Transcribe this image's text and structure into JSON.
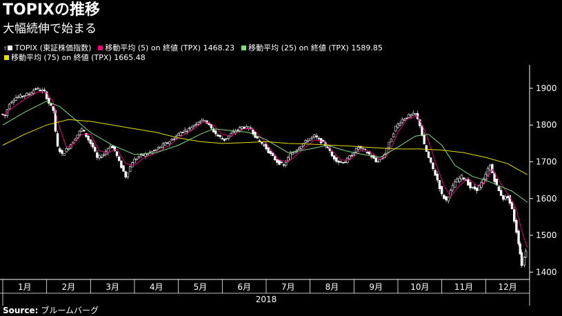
{
  "title": "TOPIXの推移",
  "subtitle": "大幅続伸で始まる",
  "source_label": "Source:",
  "source_value": "ブルームバーグ",
  "legend": {
    "row1": [
      {
        "label": "TOPIX (東証株価指数)",
        "color": "#ffffff",
        "icon": "candlestick-icon"
      },
      {
        "label": "移動平均 (5)  on 終値 (TPX) 1468.23",
        "color": "#e6007e"
      },
      {
        "label": "移動平均 (25)  on 終値 (TPX) 1589.85",
        "color": "#7ee07e"
      }
    ],
    "row2": [
      {
        "label": "移動平均 (75)  on 終値 (TPX) 1665.48",
        "color": "#e8e000"
      }
    ]
  },
  "chart_data": {
    "type": "line",
    "x_unit": "month-of-2018",
    "year_label": "2018",
    "months": [
      "1月",
      "2月",
      "3月",
      "4月",
      "5月",
      "6月",
      "7月",
      "8月",
      "9月",
      "10月",
      "11月",
      "12月"
    ],
    "ylim": [
      1380,
      1960
    ],
    "yticks": [
      1400,
      1500,
      1600,
      1700,
      1800,
      1900
    ],
    "tick_labels": [
      "1400",
      "1500",
      "1600",
      "1700",
      "1800",
      "1900"
    ],
    "grid": false,
    "y_axis_side": "right",
    "series": [
      {
        "role": "price",
        "color": "#ffffff",
        "points": [
          [
            0.0,
            1830
          ],
          [
            0.1,
            1825
          ],
          [
            0.2,
            1860
          ],
          [
            0.35,
            1875
          ],
          [
            0.5,
            1880
          ],
          [
            0.65,
            1885
          ],
          [
            0.8,
            1900
          ],
          [
            1.0,
            1890
          ],
          [
            1.1,
            1860
          ],
          [
            1.2,
            1840
          ],
          [
            1.25,
            1780
          ],
          [
            1.3,
            1740
          ],
          [
            1.4,
            1720
          ],
          [
            1.55,
            1740
          ],
          [
            1.7,
            1765
          ],
          [
            1.85,
            1790
          ],
          [
            1.95,
            1770
          ],
          [
            2.1,
            1740
          ],
          [
            2.2,
            1710
          ],
          [
            2.35,
            1720
          ],
          [
            2.5,
            1745
          ],
          [
            2.6,
            1730
          ],
          [
            2.7,
            1700
          ],
          [
            2.85,
            1660
          ],
          [
            3.0,
            1700
          ],
          [
            3.15,
            1715
          ],
          [
            3.3,
            1720
          ],
          [
            3.5,
            1730
          ],
          [
            3.7,
            1745
          ],
          [
            3.9,
            1760
          ],
          [
            4.0,
            1770
          ],
          [
            4.1,
            1780
          ],
          [
            4.3,
            1790
          ],
          [
            4.5,
            1810
          ],
          [
            4.65,
            1815
          ],
          [
            4.8,
            1790
          ],
          [
            4.95,
            1770
          ],
          [
            5.1,
            1760
          ],
          [
            5.3,
            1780
          ],
          [
            5.5,
            1795
          ],
          [
            5.7,
            1790
          ],
          [
            5.85,
            1760
          ],
          [
            6.0,
            1745
          ],
          [
            6.15,
            1720
          ],
          [
            6.3,
            1700
          ],
          [
            6.45,
            1690
          ],
          [
            6.6,
            1720
          ],
          [
            6.8,
            1740
          ],
          [
            7.0,
            1760
          ],
          [
            7.15,
            1770
          ],
          [
            7.3,
            1755
          ],
          [
            7.45,
            1740
          ],
          [
            7.55,
            1715
          ],
          [
            7.7,
            1700
          ],
          [
            7.85,
            1700
          ],
          [
            8.0,
            1720
          ],
          [
            8.15,
            1740
          ],
          [
            8.3,
            1730
          ],
          [
            8.45,
            1715
          ],
          [
            8.55,
            1700
          ],
          [
            8.7,
            1710
          ],
          [
            8.85,
            1750
          ],
          [
            9.0,
            1795
          ],
          [
            9.15,
            1815
          ],
          [
            9.3,
            1825
          ],
          [
            9.45,
            1830
          ],
          [
            9.55,
            1800
          ],
          [
            9.65,
            1745
          ],
          [
            9.75,
            1710
          ],
          [
            9.85,
            1680
          ],
          [
            9.95,
            1650
          ],
          [
            10.05,
            1610
          ],
          [
            10.15,
            1595
          ],
          [
            10.25,
            1620
          ],
          [
            10.35,
            1645
          ],
          [
            10.5,
            1660
          ],
          [
            10.6,
            1650
          ],
          [
            10.7,
            1630
          ],
          [
            10.85,
            1625
          ],
          [
            11.0,
            1650
          ],
          [
            11.1,
            1680
          ],
          [
            11.15,
            1690
          ],
          [
            11.25,
            1650
          ],
          [
            11.35,
            1620
          ],
          [
            11.45,
            1600
          ],
          [
            11.55,
            1605
          ],
          [
            11.65,
            1570
          ],
          [
            11.75,
            1510
          ],
          [
            11.82,
            1450
          ],
          [
            11.88,
            1420
          ],
          [
            11.95,
            1460
          ]
        ]
      },
      {
        "role": "ma5",
        "name": "移動平均 (5)",
        "color": "#e6007e",
        "points": [
          [
            0.0,
            1825
          ],
          [
            0.2,
            1845
          ],
          [
            0.5,
            1870
          ],
          [
            0.8,
            1890
          ],
          [
            1.0,
            1888
          ],
          [
            1.15,
            1862
          ],
          [
            1.3,
            1790
          ],
          [
            1.45,
            1740
          ],
          [
            1.6,
            1745
          ],
          [
            1.8,
            1775
          ],
          [
            2.0,
            1775
          ],
          [
            2.2,
            1730
          ],
          [
            2.4,
            1725
          ],
          [
            2.6,
            1735
          ],
          [
            2.8,
            1695
          ],
          [
            3.0,
            1690
          ],
          [
            3.2,
            1710
          ],
          [
            3.5,
            1725
          ],
          [
            3.8,
            1745
          ],
          [
            4.0,
            1765
          ],
          [
            4.3,
            1785
          ],
          [
            4.6,
            1810
          ],
          [
            4.8,
            1800
          ],
          [
            5.0,
            1775
          ],
          [
            5.2,
            1770
          ],
          [
            5.5,
            1790
          ],
          [
            5.7,
            1790
          ],
          [
            5.9,
            1765
          ],
          [
            6.1,
            1735
          ],
          [
            6.3,
            1705
          ],
          [
            6.5,
            1700
          ],
          [
            6.8,
            1730
          ],
          [
            7.1,
            1760
          ],
          [
            7.3,
            1755
          ],
          [
            7.5,
            1730
          ],
          [
            7.7,
            1705
          ],
          [
            7.9,
            1705
          ],
          [
            8.2,
            1735
          ],
          [
            8.4,
            1725
          ],
          [
            8.6,
            1705
          ],
          [
            8.8,
            1725
          ],
          [
            9.0,
            1780
          ],
          [
            9.2,
            1815
          ],
          [
            9.45,
            1825
          ],
          [
            9.65,
            1775
          ],
          [
            9.85,
            1700
          ],
          [
            10.05,
            1635
          ],
          [
            10.2,
            1605
          ],
          [
            10.4,
            1635
          ],
          [
            10.6,
            1655
          ],
          [
            10.8,
            1635
          ],
          [
            11.0,
            1645
          ],
          [
            11.15,
            1680
          ],
          [
            11.35,
            1640
          ],
          [
            11.55,
            1605
          ],
          [
            11.7,
            1570
          ],
          [
            11.85,
            1500
          ],
          [
            11.95,
            1468
          ]
        ]
      },
      {
        "role": "ma25",
        "name": "移動平均 (25)",
        "color": "#7ee07e",
        "points": [
          [
            0.0,
            1800
          ],
          [
            0.5,
            1835
          ],
          [
            1.0,
            1865
          ],
          [
            1.3,
            1850
          ],
          [
            1.7,
            1810
          ],
          [
            2.0,
            1780
          ],
          [
            2.5,
            1745
          ],
          [
            3.0,
            1720
          ],
          [
            3.5,
            1725
          ],
          [
            4.0,
            1745
          ],
          [
            4.5,
            1775
          ],
          [
            4.8,
            1790
          ],
          [
            5.2,
            1785
          ],
          [
            5.6,
            1780
          ],
          [
            6.0,
            1760
          ],
          [
            6.5,
            1725
          ],
          [
            7.0,
            1735
          ],
          [
            7.4,
            1745
          ],
          [
            7.8,
            1730
          ],
          [
            8.2,
            1720
          ],
          [
            8.6,
            1712
          ],
          [
            9.0,
            1740
          ],
          [
            9.4,
            1770
          ],
          [
            9.7,
            1775
          ],
          [
            10.0,
            1745
          ],
          [
            10.3,
            1690
          ],
          [
            10.7,
            1660
          ],
          [
            11.0,
            1650
          ],
          [
            11.3,
            1635
          ],
          [
            11.6,
            1620
          ],
          [
            11.95,
            1590
          ]
        ]
      },
      {
        "role": "ma75",
        "name": "移動平均 (75)",
        "color": "#e8e000",
        "points": [
          [
            0.0,
            1745
          ],
          [
            0.5,
            1775
          ],
          [
            1.0,
            1800
          ],
          [
            1.5,
            1815
          ],
          [
            2.0,
            1810
          ],
          [
            2.5,
            1800
          ],
          [
            3.0,
            1790
          ],
          [
            3.5,
            1780
          ],
          [
            4.0,
            1765
          ],
          [
            4.5,
            1755
          ],
          [
            5.0,
            1750
          ],
          [
            5.5,
            1752
          ],
          [
            6.0,
            1755
          ],
          [
            6.5,
            1750
          ],
          [
            7.0,
            1748
          ],
          [
            7.5,
            1745
          ],
          [
            8.0,
            1742
          ],
          [
            8.5,
            1738
          ],
          [
            9.0,
            1735
          ],
          [
            9.5,
            1735
          ],
          [
            10.0,
            1732
          ],
          [
            10.5,
            1725
          ],
          [
            11.0,
            1712
          ],
          [
            11.5,
            1695
          ],
          [
            11.95,
            1665
          ]
        ]
      }
    ]
  }
}
